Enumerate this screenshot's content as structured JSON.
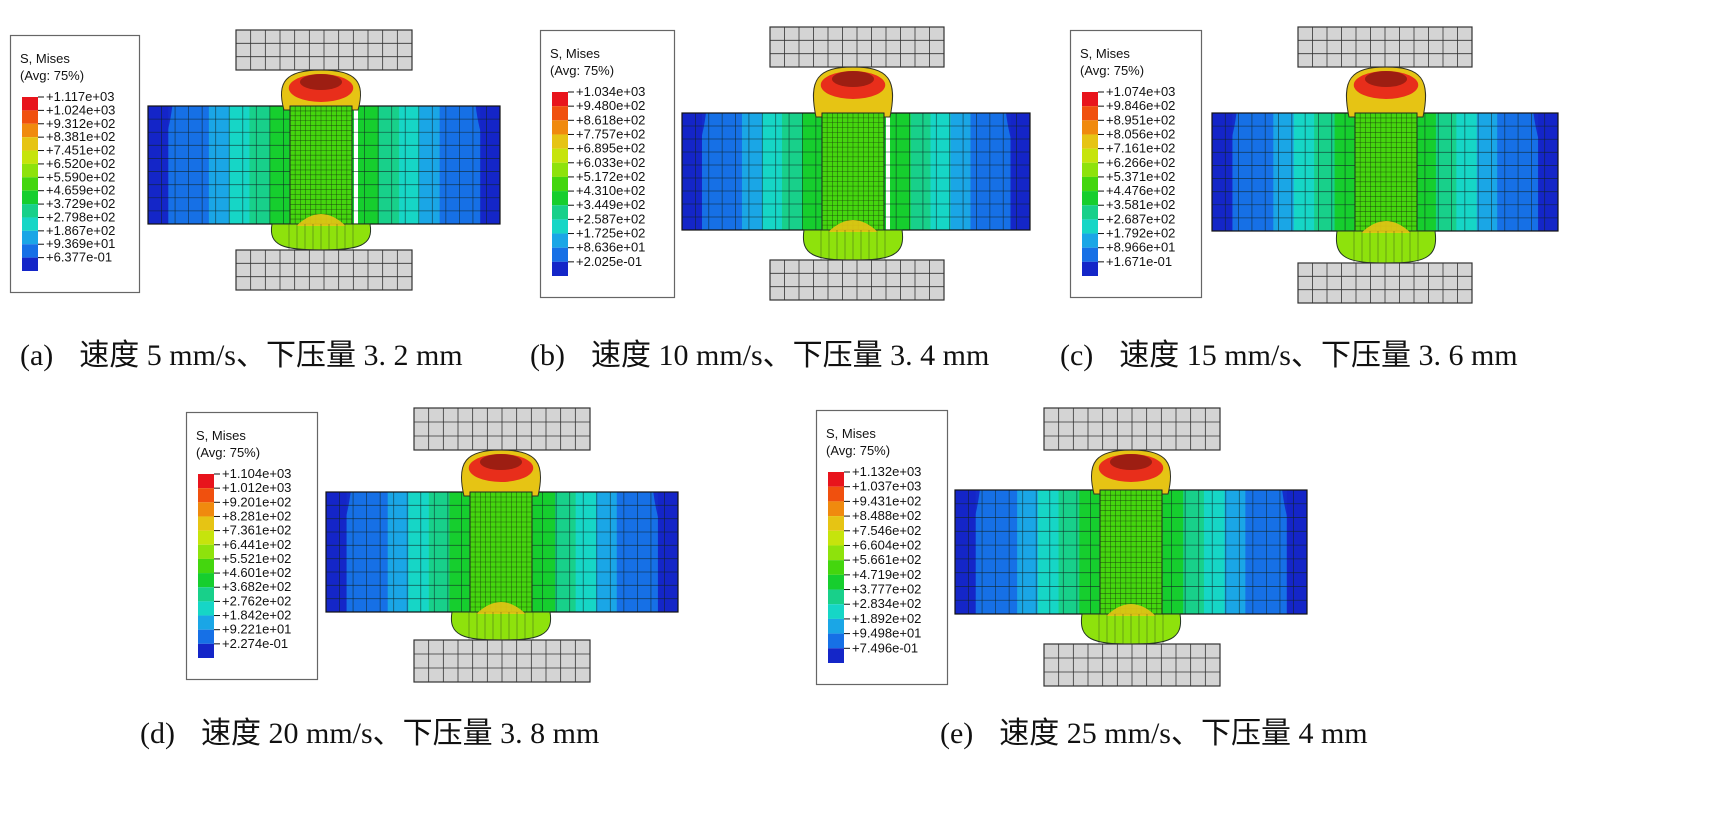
{
  "legend": {
    "title": "S, Mises",
    "subtitle": "(Avg: 75%)",
    "colors": [
      "#e8141c",
      "#f0500e",
      "#f08a0e",
      "#e6c414",
      "#c6e40c",
      "#8ee20c",
      "#44d60e",
      "#16ce2e",
      "#18d08a",
      "#16d6c6",
      "#1aa6e6",
      "#1670e6",
      "#1426c8"
    ]
  },
  "panels": [
    {
      "tag": "(a)",
      "caption": "速度 5 mm/s、下压量 3. 2 mm",
      "levels": [
        "+1.117e+03",
        "+1.024e+03",
        "+9.312e+02",
        "+8.381e+02",
        "+7.451e+02",
        "+6.520e+02",
        "+5.590e+02",
        "+4.659e+02",
        "+3.729e+02",
        "+2.798e+02",
        "+1.867e+02",
        "+9.369e+01",
        "+6.377e-01"
      ]
    },
    {
      "tag": "(b)",
      "caption": "速度 10 mm/s、下压量 3. 4 mm",
      "levels": [
        "+1.034e+03",
        "+9.480e+02",
        "+8.618e+02",
        "+7.757e+02",
        "+6.895e+02",
        "+6.033e+02",
        "+5.172e+02",
        "+4.310e+02",
        "+3.449e+02",
        "+2.587e+02",
        "+1.725e+02",
        "+8.636e+01",
        "+2.025e-01"
      ]
    },
    {
      "tag": "(c)",
      "caption": "速度 15 mm/s、下压量 3. 6 mm",
      "levels": [
        "+1.074e+03",
        "+9.846e+02",
        "+8.951e+02",
        "+8.056e+02",
        "+7.161e+02",
        "+6.266e+02",
        "+5.371e+02",
        "+4.476e+02",
        "+3.581e+02",
        "+2.687e+02",
        "+1.792e+02",
        "+8.966e+01",
        "+1.671e-01"
      ]
    },
    {
      "tag": "(d)",
      "caption": "速度 20 mm/s、下压量 3. 8 mm",
      "levels": [
        "+1.104e+03",
        "+1.012e+03",
        "+9.201e+02",
        "+8.281e+02",
        "+7.361e+02",
        "+6.441e+02",
        "+5.521e+02",
        "+4.601e+02",
        "+3.682e+02",
        "+2.762e+02",
        "+1.842e+02",
        "+9.221e+01",
        "+2.274e-01"
      ]
    },
    {
      "tag": "(e)",
      "caption": "速度 25 mm/s、下压量 4 mm",
      "levels": [
        "+1.132e+03",
        "+1.037e+03",
        "+9.431e+02",
        "+8.488e+02",
        "+7.546e+02",
        "+6.604e+02",
        "+5.661e+02",
        "+4.719e+02",
        "+3.777e+02",
        "+2.834e+02",
        "+1.892e+02",
        "+9.498e+01",
        "+7.496e-01"
      ]
    }
  ]
}
